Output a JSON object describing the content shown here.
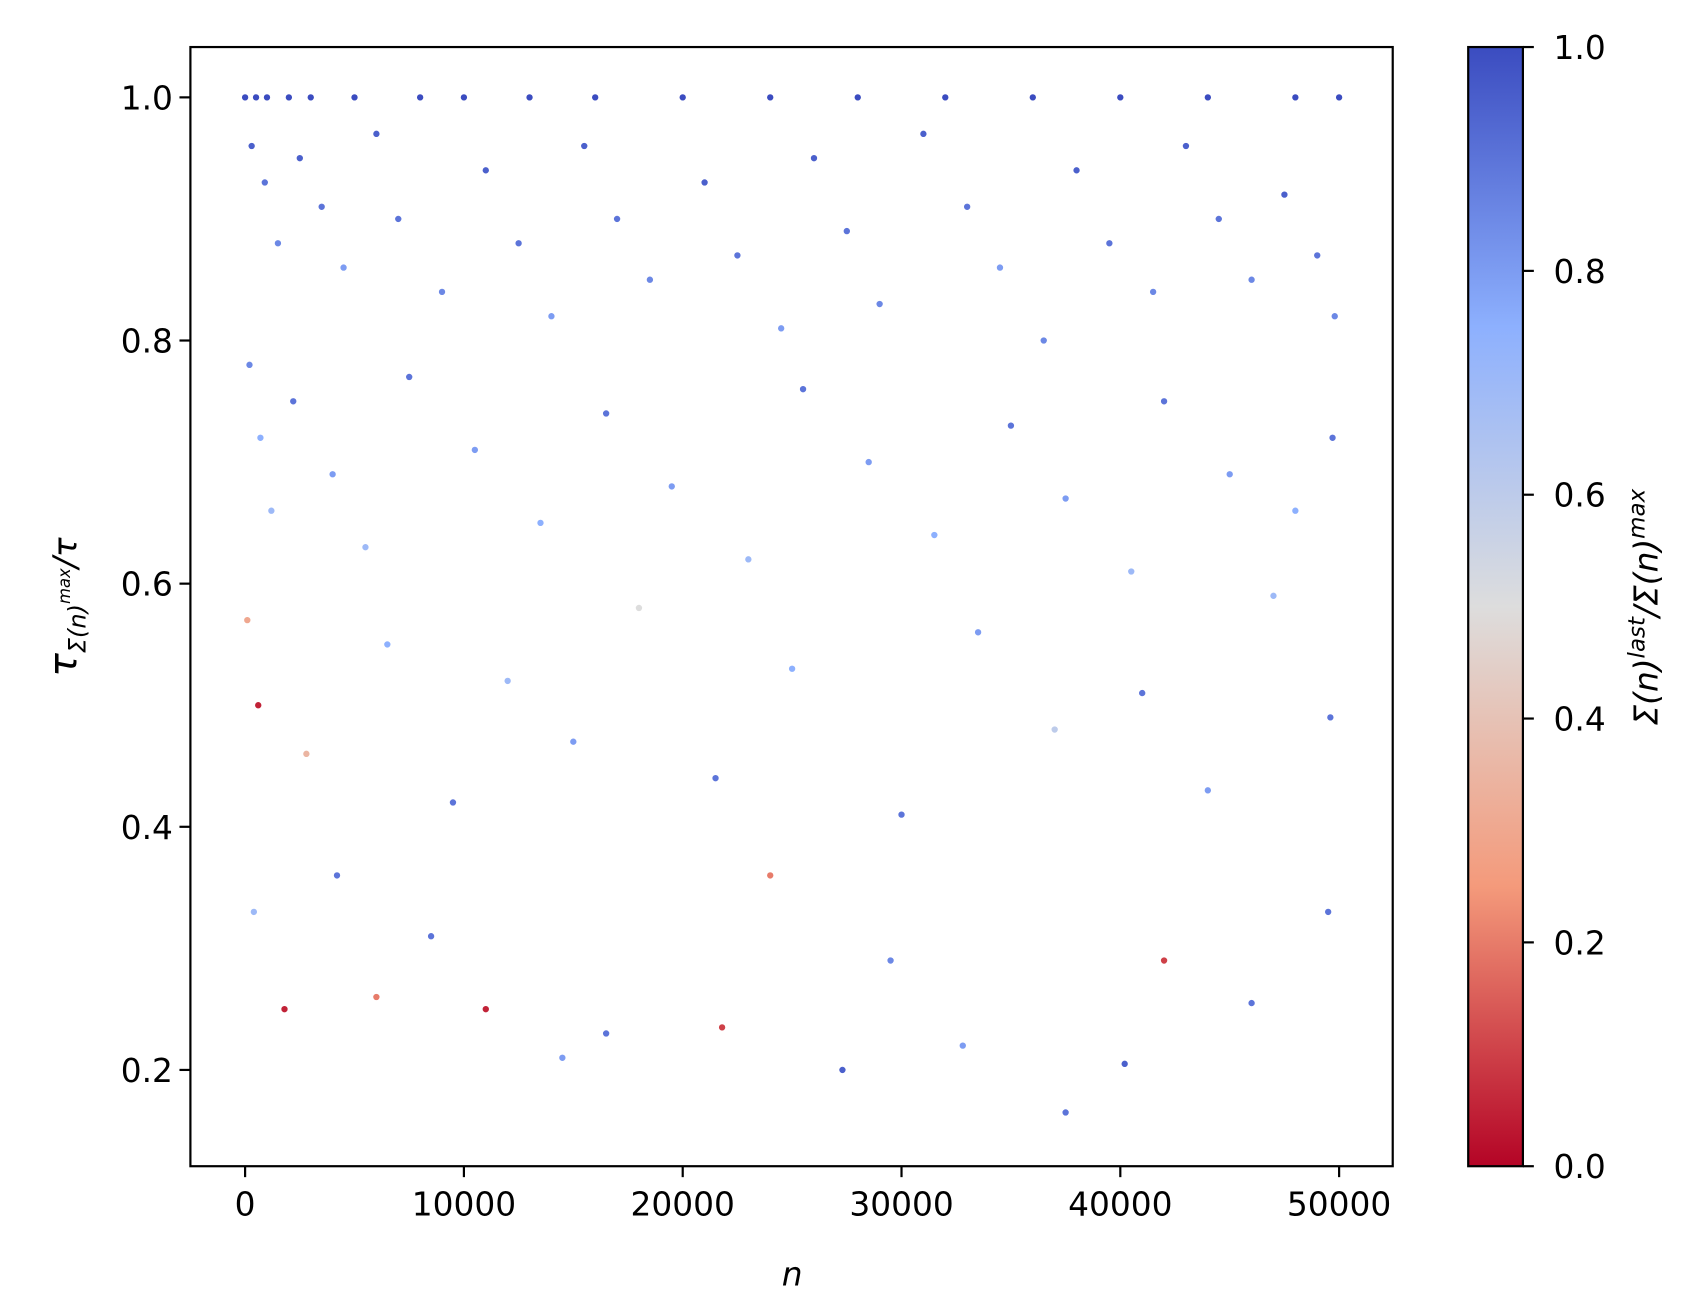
{
  "chart_data": {
    "type": "scatter",
    "xlabel": "n",
    "ylabel": {
      "base": "τ",
      "sub": "Σ(n)",
      "sup": "max",
      "rest": "/τ"
    },
    "colorbar_label": [
      "Σ(n)",
      "last",
      "/Σ(n)",
      "max"
    ],
    "xlim": [
      -2500,
      52450
    ],
    "ylim": [
      0.1208,
      1.0414
    ],
    "xticks": [
      0,
      10000,
      20000,
      30000,
      40000,
      50000
    ],
    "yticks": [
      0.2,
      0.4,
      0.6,
      0.8,
      {
        "value": 1,
        "label": "1.0"
      }
    ],
    "clim": [
      0,
      1
    ],
    "cticks": [
      {
        "value": 0,
        "label": "0.0"
      },
      0.2,
      0.4,
      0.6,
      0.8,
      {
        "value": 1,
        "label": "1.0"
      }
    ],
    "colormap": "coolwarm",
    "series": [
      {
        "x": [
          0,
          500,
          1000,
          2000,
          3000,
          5000,
          8000,
          10000,
          13000,
          16000,
          20000,
          24000,
          28000,
          32000,
          36000,
          40000,
          44000,
          48000,
          50000,
          300,
          900,
          1500,
          2500,
          3500,
          4500,
          6000,
          7000,
          9000,
          11000,
          12500,
          14000,
          15500,
          17000,
          18500,
          21000,
          22500,
          24500,
          26000,
          27500,
          29000,
          31000,
          33000,
          34500,
          36500,
          38000,
          39500,
          41500,
          43000,
          44500,
          46000,
          47500,
          49000,
          49800,
          200,
          700,
          1200,
          2200,
          4000,
          5500,
          7500,
          10500,
          13500,
          16500,
          19500,
          23000,
          25500,
          28500,
          31500,
          35000,
          37500,
          40500,
          42000,
          45000,
          48000,
          49700,
          100,
          600,
          2800,
          6500,
          9500,
          12000,
          15000,
          18000,
          21500,
          25000,
          30000,
          33500,
          37000,
          41000,
          44000,
          47000,
          49600,
          400,
          1800,
          4200,
          6000,
          8500,
          11000,
          14500,
          16500,
          21800,
          24000,
          27300,
          29500,
          32800,
          37500,
          40200,
          42000,
          46000,
          49500
        ],
        "values": [
          1,
          1,
          1,
          1,
          1,
          1,
          1,
          1,
          1,
          1,
          1,
          1,
          1,
          1,
          1,
          1,
          1,
          1,
          1,
          0.96,
          0.93,
          0.88,
          0.95,
          0.91,
          0.86,
          0.97,
          0.9,
          0.84,
          0.94,
          0.88,
          0.82,
          0.96,
          0.9,
          0.85,
          0.93,
          0.87,
          0.81,
          0.95,
          0.89,
          0.83,
          0.97,
          0.91,
          0.86,
          0.8,
          0.94,
          0.88,
          0.84,
          0.96,
          0.9,
          0.85,
          0.92,
          0.87,
          0.82,
          0.78,
          0.72,
          0.66,
          0.75,
          0.69,
          0.63,
          0.77,
          0.71,
          0.65,
          0.74,
          0.68,
          0.62,
          0.76,
          0.7,
          0.64,
          0.73,
          0.67,
          0.61,
          0.75,
          0.69,
          0.66,
          0.72,
          0.57,
          0.5,
          0.46,
          0.55,
          0.42,
          0.52,
          0.47,
          0.58,
          0.44,
          0.53,
          0.41,
          0.56,
          0.48,
          0.51,
          0.43,
          0.59,
          0.49,
          0.33,
          0.25,
          0.36,
          0.26,
          0.31,
          0.25,
          0.21,
          0.23,
          0.235,
          0.36,
          0.2,
          0.29,
          0.22,
          0.165,
          0.205,
          0.29,
          0.255,
          0.33
        ],
        "colors": [
          1,
          1,
          1,
          1,
          1,
          1,
          1,
          1,
          1,
          1,
          1,
          1,
          1,
          1,
          1,
          1,
          1,
          1,
          1,
          0.95,
          0.9,
          0.85,
          0.95,
          0.9,
          0.8,
          0.95,
          0.9,
          0.85,
          0.95,
          0.9,
          0.8,
          0.95,
          0.9,
          0.85,
          0.95,
          0.9,
          0.8,
          0.95,
          0.9,
          0.85,
          0.95,
          0.9,
          0.8,
          0.85,
          0.95,
          0.9,
          0.85,
          0.95,
          0.9,
          0.85,
          0.95,
          0.9,
          0.85,
          0.85,
          0.75,
          0.7,
          0.9,
          0.8,
          0.7,
          0.9,
          0.8,
          0.75,
          0.9,
          0.8,
          0.7,
          0.9,
          0.8,
          0.75,
          0.9,
          0.8,
          0.7,
          0.9,
          0.8,
          0.75,
          0.9,
          0.3,
          0.05,
          0.35,
          0.75,
          0.9,
          0.7,
          0.8,
          0.5,
          0.9,
          0.75,
          0.9,
          0.8,
          0.6,
          0.9,
          0.8,
          0.7,
          0.9,
          0.7,
          0.05,
          0.9,
          0.2,
          0.9,
          0.05,
          0.8,
          0.9,
          0.1,
          0.2,
          0.95,
          0.85,
          0.8,
          0.9,
          0.95,
          0.1,
          0.9,
          0.9
        ]
      }
    ]
  }
}
